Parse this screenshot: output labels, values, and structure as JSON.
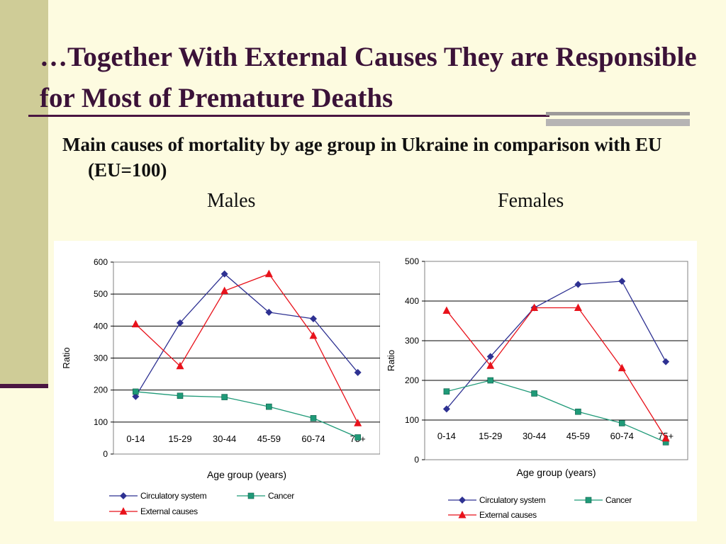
{
  "slide": {
    "title": "…Together With External Causes They are Responsible for Most of Premature Deaths",
    "subtitle": "Main causes of mortality by age group in Ukraine in comparison with EU (EU=100)",
    "males_label": "Males",
    "females_label": "Females"
  },
  "chart_data": [
    {
      "type": "line",
      "panel": "Males",
      "categories": [
        "0-14",
        "15-29",
        "30-44",
        "45-59",
        "60-74",
        "75+"
      ],
      "xlabel": "Age group (years)",
      "ylabel": "Ratio",
      "ylim": [
        0,
        600
      ],
      "yticks": [
        0,
        100,
        200,
        300,
        400,
        500,
        600
      ],
      "grid": true,
      "legend": "bottom",
      "series": [
        {
          "name": "Circulatory system",
          "marker": "diamond",
          "color": "#2e3192",
          "values": [
            180,
            410,
            563,
            443,
            423,
            255
          ]
        },
        {
          "name": "Cancer",
          "marker": "square",
          "color": "#1f9a78",
          "values": [
            195,
            182,
            178,
            148,
            112,
            52
          ]
        },
        {
          "name": "External causes",
          "marker": "triangle",
          "color": "#e8121b",
          "values": [
            406,
            275,
            510,
            563,
            370,
            97
          ]
        }
      ]
    },
    {
      "type": "line",
      "panel": "Females",
      "categories": [
        "0-14",
        "15-29",
        "30-44",
        "45-59",
        "60-74",
        "75+"
      ],
      "xlabel": "Age group (years)",
      "ylabel": "Ratio",
      "ylim": [
        0,
        500
      ],
      "yticks": [
        0,
        100,
        200,
        300,
        400,
        500
      ],
      "grid": true,
      "legend": "bottom",
      "series": [
        {
          "name": "Circulatory system",
          "marker": "diamond",
          "color": "#2e3192",
          "values": [
            128,
            260,
            383,
            442,
            450,
            247
          ]
        },
        {
          "name": "Cancer",
          "marker": "square",
          "color": "#1f9a78",
          "values": [
            172,
            200,
            167,
            121,
            92,
            44
          ]
        },
        {
          "name": "External causes",
          "marker": "triangle",
          "color": "#e8121b",
          "values": [
            376,
            237,
            383,
            383,
            231,
            54
          ]
        }
      ]
    }
  ]
}
